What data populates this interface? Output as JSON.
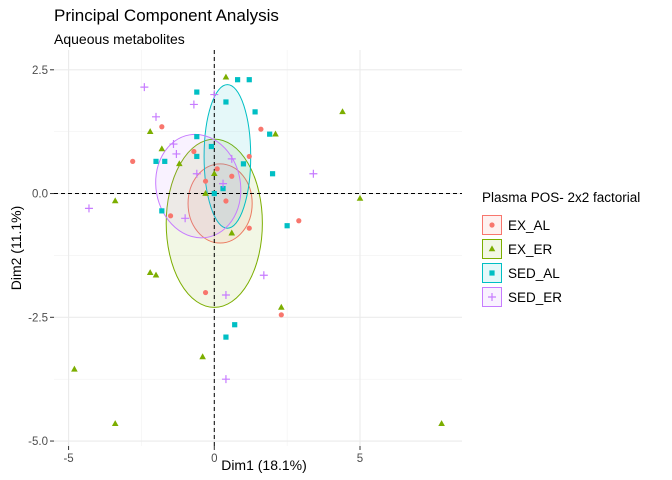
{
  "chart_data": {
    "type": "scatter",
    "title": "Principal Component Analysis",
    "subtitle": "Aqueous metabolites",
    "xlabel": "Dim1 (18.1%)",
    "ylabel": "Dim2 (11.1%)",
    "xlim": [
      -5.5,
      8.5
    ],
    "ylim": [
      -5.1,
      2.9
    ],
    "xticks": [
      -5,
      0,
      5
    ],
    "yticks": [
      -5.0,
      -2.5,
      0.0,
      2.5
    ],
    "xtick_labels": [
      "-5",
      "0",
      "5"
    ],
    "ytick_labels": [
      "-5.0",
      "-2.5",
      "0.0",
      "2.5"
    ],
    "grid": true,
    "reference_lines": {
      "x": 0,
      "y": 0
    },
    "legend_title": "Plasma POS- 2x2 factorial",
    "legend_position": "right",
    "series": [
      {
        "name": "EX_AL",
        "color": "#F8766D",
        "marker": "circle",
        "points": [
          [
            -2.8,
            0.65
          ],
          [
            -1.8,
            1.35
          ],
          [
            -1.5,
            -0.45
          ],
          [
            -0.7,
            0.85
          ],
          [
            -0.3,
            0.25
          ],
          [
            0.1,
            0.5
          ],
          [
            0.6,
            0.35
          ],
          [
            1.2,
            -0.7
          ],
          [
            1.2,
            0.75
          ],
          [
            1.6,
            1.3
          ],
          [
            2.9,
            -0.55
          ],
          [
            -0.3,
            -2.0
          ],
          [
            2.3,
            -2.45
          ],
          [
            0.4,
            -0.15
          ]
        ],
        "ellipse": {
          "cx": 0.2,
          "cy": -0.2,
          "rx": 1.1,
          "ry": 0.8,
          "angle": 0
        }
      },
      {
        "name": "EX_ER",
        "color": "#7CAE00",
        "marker": "triangle",
        "points": [
          [
            -4.8,
            -3.55
          ],
          [
            -3.4,
            -4.65
          ],
          [
            -3.4,
            -0.15
          ],
          [
            -2.2,
            -1.6
          ],
          [
            -2.0,
            -1.65
          ],
          [
            -2.2,
            1.25
          ],
          [
            -1.8,
            0.9
          ],
          [
            -1.2,
            0.6
          ],
          [
            0.0,
            0.4
          ],
          [
            -0.3,
            0.0
          ],
          [
            0.4,
            2.35
          ],
          [
            -0.4,
            -3.3
          ],
          [
            2.3,
            -2.3
          ],
          [
            2.1,
            1.2
          ],
          [
            4.4,
            1.65
          ],
          [
            5.0,
            -0.1
          ],
          [
            7.8,
            -4.65
          ],
          [
            0.6,
            -0.8
          ]
        ],
        "ellipse": {
          "cx": 0.0,
          "cy": -0.6,
          "rx": 1.65,
          "ry": 1.7,
          "angle": 0
        }
      },
      {
        "name": "SED_AL",
        "color": "#00BFC4",
        "marker": "square",
        "points": [
          [
            -2.0,
            0.65
          ],
          [
            -1.7,
            0.65
          ],
          [
            -1.8,
            -0.35
          ],
          [
            -0.6,
            1.15
          ],
          [
            -0.6,
            0.75
          ],
          [
            -0.6,
            2.05
          ],
          [
            -0.1,
            0.95
          ],
          [
            0.0,
            0.0
          ],
          [
            0.4,
            1.85
          ],
          [
            0.3,
            0.1
          ],
          [
            0.8,
            2.3
          ],
          [
            1.2,
            2.3
          ],
          [
            1.4,
            1.65
          ],
          [
            1.9,
            1.2
          ],
          [
            2.0,
            0.4
          ],
          [
            2.5,
            -0.65
          ],
          [
            0.7,
            -2.65
          ],
          [
            0.4,
            -2.9
          ],
          [
            1.0,
            0.6
          ]
        ],
        "ellipse": {
          "cx": 0.45,
          "cy": 0.75,
          "rx": 0.8,
          "ry": 1.45,
          "angle": 0
        }
      },
      {
        "name": "SED_ER",
        "color": "#C77CFF",
        "marker": "plus",
        "points": [
          [
            -4.3,
            -0.3
          ],
          [
            -2.4,
            2.15
          ],
          [
            -2.0,
            1.55
          ],
          [
            -1.4,
            1.0
          ],
          [
            -1.3,
            0.8
          ],
          [
            -0.7,
            1.8
          ],
          [
            -0.6,
            0.4
          ],
          [
            0.0,
            2.0
          ],
          [
            -1.0,
            -0.5
          ],
          [
            0.3,
            0.2
          ],
          [
            3.4,
            0.4
          ],
          [
            1.7,
            -1.65
          ],
          [
            0.4,
            -2.05
          ],
          [
            0.4,
            -3.75
          ],
          [
            0.6,
            0.7
          ]
        ],
        "ellipse": {
          "cx": -0.55,
          "cy": 0.15,
          "rx": 1.45,
          "ry": 1.05,
          "angle": -10
        }
      }
    ]
  }
}
